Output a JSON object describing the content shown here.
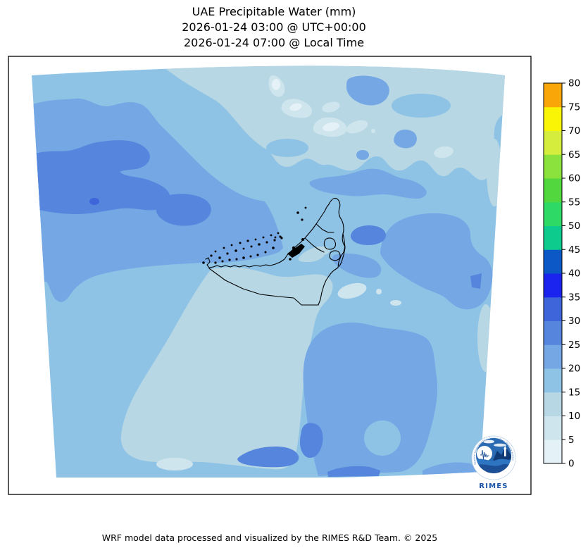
{
  "title": {
    "line1": "UAE Precipitable Water (mm)",
    "line2": "2026-01-24 03:00 @ UTC+00:00",
    "line3": "2026-01-24 07:00 @ Local Time"
  },
  "footer": {
    "text": "WRF model data processed and visualized by the RIMES R&D Team. © 2025"
  },
  "logo": {
    "name": "RIMES",
    "arc_text": "Regional Integrated Multi-Hazard Early Warning System"
  },
  "colorbar": {
    "tick_labels": [
      "0",
      "5",
      "10",
      "15",
      "20",
      "25",
      "30",
      "35",
      "40",
      "45",
      "50",
      "55",
      "60",
      "65",
      "70",
      "75",
      "80"
    ]
  },
  "chart_data": {
    "type": "heatmap",
    "title": "UAE Precipitable Water (mm)",
    "valid_time_utc": "2026-01-24 03:00 @ UTC+00:00",
    "valid_time_local": "2026-01-24 07:00 @ Local Time",
    "variable": "Precipitable Water",
    "unit": "mm",
    "colorbar_range": [
      0,
      80
    ],
    "colorbar_step": 5,
    "levels": [
      {
        "min": 0,
        "max": 5,
        "color": "#E4F1F7"
      },
      {
        "min": 5,
        "max": 10,
        "color": "#CFE5EE"
      },
      {
        "min": 10,
        "max": 15,
        "color": "#B7D7E4"
      },
      {
        "min": 15,
        "max": 20,
        "color": "#8FC3E6"
      },
      {
        "min": 20,
        "max": 25,
        "color": "#74A7E4"
      },
      {
        "min": 25,
        "max": 30,
        "color": "#5585DC"
      },
      {
        "min": 30,
        "max": 35,
        "color": "#3E65D9"
      },
      {
        "min": 35,
        "max": 40,
        "color": "#1B23EE"
      },
      {
        "min": 40,
        "max": 45,
        "color": "#0D58C7"
      },
      {
        "min": 45,
        "max": 50,
        "color": "#0DCA8D"
      },
      {
        "min": 50,
        "max": 55,
        "color": "#2FD966"
      },
      {
        "min": 55,
        "max": 60,
        "color": "#52D83E"
      },
      {
        "min": 60,
        "max": 65,
        "color": "#8BE23D"
      },
      {
        "min": 65,
        "max": 70,
        "color": "#D5ED3D"
      },
      {
        "min": 70,
        "max": 75,
        "color": "#FAF405"
      },
      {
        "min": 75,
        "max": 80,
        "color": "#F9A608"
      }
    ],
    "regions": [
      {
        "area": "northwest quadrant (Gulf, west of UAE)",
        "value_mm": "20-30"
      },
      {
        "area": "west-central local maximum",
        "value_mm": "30-35"
      },
      {
        "area": "top-center streaks",
        "value_mm": "0-10"
      },
      {
        "area": "upper band (north of UAE)",
        "value_mm": "10-15"
      },
      {
        "area": "UAE interior and south-central desert",
        "value_mm": "10-15"
      },
      {
        "area": "background over most of domain",
        "value_mm": "15-20"
      },
      {
        "area": "patches east of UAE and bottom-center",
        "value_mm": "20-30"
      }
    ],
    "overlay": "UAE coastline, islands and emirate borders drawn in black",
    "legend_position": "right vertical colorbar"
  }
}
